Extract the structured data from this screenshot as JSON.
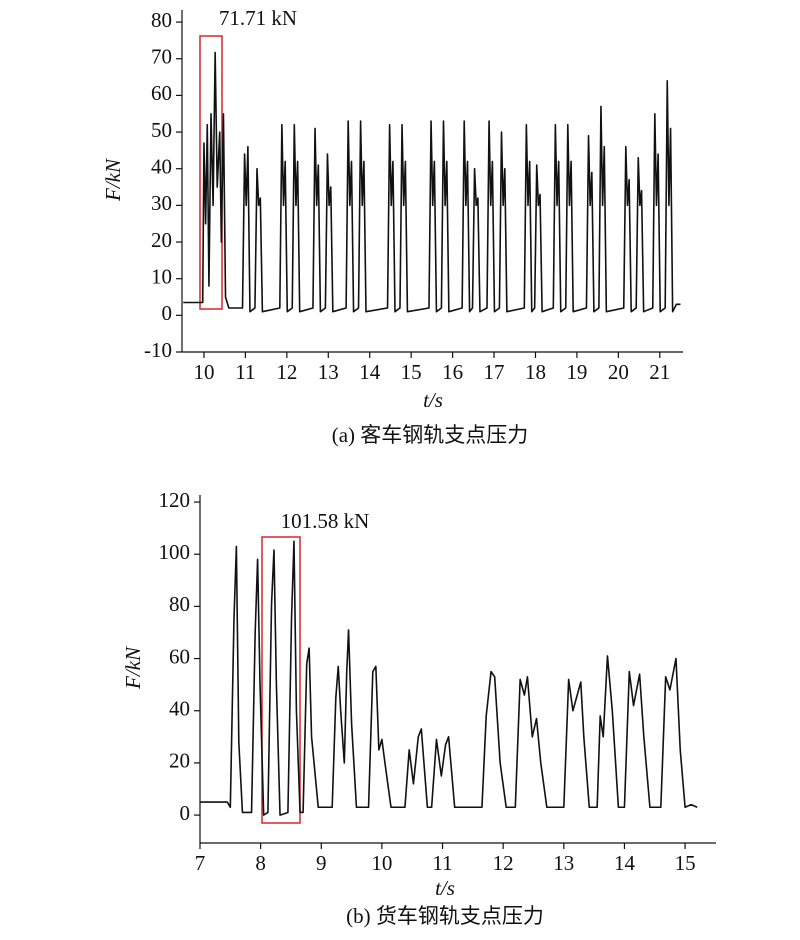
{
  "chart_data": [
    {
      "type": "line",
      "caption": "(a) 客车钢轨支点压力",
      "xlabel": "t/s",
      "ylabel": "F/kN",
      "annotation": "71.71 kN",
      "xlim": [
        9.47,
        21.56
      ],
      "ylim": [
        -10,
        83.3
      ],
      "xticks": [
        10,
        11,
        12,
        13,
        14,
        15,
        16,
        17,
        18,
        19,
        20,
        21
      ],
      "yticks": [
        -10,
        0,
        10,
        20,
        30,
        40,
        50,
        60,
        70,
        80
      ],
      "color": "#111111",
      "x": [
        9.5,
        9.97,
        10.0,
        10.04,
        10.08,
        10.12,
        10.17,
        10.22,
        10.27,
        10.32,
        10.38,
        10.42,
        10.47,
        10.52,
        10.6,
        10.93,
        10.98,
        11.02,
        11.06,
        11.11,
        11.23,
        11.28,
        11.32,
        11.36,
        11.41,
        11.83,
        11.88,
        11.92,
        11.96,
        12.01,
        12.13,
        12.18,
        12.22,
        12.26,
        12.31,
        12.63,
        12.68,
        12.72,
        12.76,
        12.81,
        12.93,
        12.98,
        13.02,
        13.06,
        13.11,
        13.43,
        13.48,
        13.52,
        13.56,
        13.61,
        13.73,
        13.78,
        13.82,
        13.86,
        13.91,
        14.43,
        14.48,
        14.52,
        14.56,
        14.61,
        14.73,
        14.78,
        14.82,
        14.86,
        14.91,
        15.43,
        15.48,
        15.52,
        15.56,
        15.61,
        15.73,
        15.78,
        15.82,
        15.86,
        15.91,
        16.23,
        16.28,
        16.32,
        16.36,
        16.41,
        16.48,
        16.53,
        16.57,
        16.61,
        16.66,
        16.83,
        16.88,
        16.92,
        16.96,
        17.01,
        17.13,
        17.18,
        17.22,
        17.26,
        17.31,
        17.73,
        17.78,
        17.82,
        17.86,
        17.91,
        17.98,
        18.03,
        18.07,
        18.11,
        18.16,
        18.43,
        18.48,
        18.52,
        18.56,
        18.61,
        18.73,
        18.78,
        18.82,
        18.86,
        18.91,
        19.23,
        19.28,
        19.32,
        19.36,
        19.41,
        19.53,
        19.58,
        19.62,
        19.66,
        19.71,
        20.13,
        20.18,
        20.22,
        20.26,
        20.31,
        20.43,
        20.48,
        20.52,
        20.56,
        20.61,
        20.83,
        20.88,
        20.92,
        20.96,
        21.01,
        21.13,
        21.18,
        21.22,
        21.26,
        21.31,
        21.4,
        21.5
      ],
      "values": [
        3.5,
        3.5,
        47,
        25,
        52,
        8,
        55,
        30,
        71.71,
        35,
        50,
        20,
        55,
        5,
        2,
        2,
        44,
        30,
        46,
        1,
        2,
        40,
        30,
        32,
        1,
        2,
        52,
        30,
        42,
        1,
        2,
        52,
        30,
        42,
        1,
        2,
        51,
        30,
        41,
        1,
        2,
        44,
        30,
        35,
        1,
        2,
        53,
        30,
        42,
        1,
        2,
        53,
        30,
        42,
        1,
        2,
        52,
        30,
        42,
        1,
        2,
        52,
        30,
        42,
        1,
        2,
        53,
        30,
        42,
        1,
        2,
        53,
        30,
        42,
        1,
        2,
        53,
        30,
        42,
        1,
        2,
        40,
        30,
        32,
        1,
        2,
        53,
        30,
        42,
        1,
        2,
        50,
        30,
        40,
        1,
        2,
        52,
        30,
        42,
        1,
        2,
        41,
        30,
        33,
        1,
        2,
        52,
        30,
        42,
        1,
        2,
        52,
        30,
        42,
        1,
        2,
        49,
        30,
        39,
        1,
        2,
        57,
        30,
        46,
        1,
        2,
        46,
        30,
        37,
        1,
        2,
        43,
        30,
        34,
        1,
        2,
        55,
        30,
        44,
        1,
        2,
        64,
        30,
        51,
        1,
        3,
        3
      ]
    },
    {
      "type": "line",
      "caption": "(b) 货车钢轨支点压力",
      "xlabel": "t/s",
      "ylabel": "F/kN",
      "annotation": "101.58 kN",
      "xlim": [
        7,
        15.51
      ],
      "ylim": [
        -10.7,
        122.7
      ],
      "xticks": [
        7,
        8,
        9,
        10,
        11,
        12,
        13,
        14,
        15
      ],
      "yticks": [
        0,
        20,
        40,
        60,
        80,
        100,
        120
      ],
      "color": "#111111",
      "x": [
        7.0,
        7.45,
        7.5,
        7.56,
        7.6,
        7.64,
        7.7,
        7.85,
        7.91,
        7.95,
        7.99,
        8.05,
        8.12,
        8.18,
        8.22,
        8.26,
        8.32,
        8.45,
        8.51,
        8.55,
        8.59,
        8.65,
        8.7,
        8.76,
        8.8,
        8.84,
        8.95,
        9.18,
        9.24,
        9.28,
        9.32,
        9.38,
        9.42,
        9.45,
        9.5,
        9.58,
        9.78,
        9.85,
        9.9,
        9.95,
        10.0,
        10.05,
        10.15,
        10.38,
        10.45,
        10.52,
        10.6,
        10.65,
        10.75,
        10.82,
        10.9,
        10.98,
        11.05,
        11.1,
        11.2,
        11.65,
        11.72,
        11.8,
        11.86,
        11.95,
        12.05,
        12.2,
        12.28,
        12.35,
        12.4,
        12.48,
        12.55,
        12.62,
        12.72,
        13.0,
        13.08,
        13.15,
        13.28,
        13.33,
        13.42,
        13.55,
        13.6,
        13.65,
        13.72,
        13.8,
        13.9,
        14.0,
        14.08,
        14.15,
        14.25,
        14.32,
        14.42,
        14.6,
        14.68,
        14.75,
        14.85,
        14.92,
        15.0,
        15.1,
        15.2
      ],
      "values": [
        5,
        5,
        3,
        75,
        103,
        28,
        1,
        1,
        70,
        98,
        50,
        0,
        1,
        81,
        101.58,
        50,
        0,
        1,
        76,
        105,
        40,
        1,
        1,
        58,
        64,
        30,
        3,
        3,
        45,
        57,
        40,
        20,
        55,
        71,
        35,
        3,
        3,
        55,
        57,
        25,
        29,
        20,
        3,
        3,
        25,
        12,
        30,
        33,
        3,
        3,
        29,
        15,
        27,
        30,
        3,
        3,
        38,
        55,
        53,
        20,
        3,
        3,
        52,
        46,
        53,
        30,
        37,
        20,
        3,
        3,
        52,
        40,
        51,
        30,
        3,
        3,
        38,
        30,
        61,
        40,
        3,
        3,
        55,
        42,
        54,
        30,
        3,
        3,
        53,
        48,
        60,
        25,
        3,
        4,
        3
      ]
    }
  ]
}
